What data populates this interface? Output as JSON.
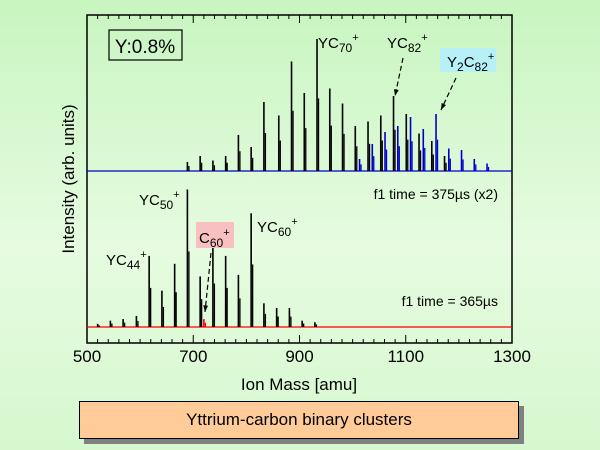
{
  "chart_data": {
    "type": "line",
    "title": "",
    "xlabel": "Ion Mass [amu]",
    "ylabel": "Intensity (arb. units)",
    "xlim": [
      500,
      1300
    ],
    "xticks": [
      500,
      700,
      900,
      1100,
      1300
    ],
    "x_minor_step": 20,
    "grid": false,
    "inset_label": "Y:0.8%",
    "caption": "Yttrium-carbon binary clusters",
    "colors": {
      "top_series": "#0000cc",
      "top_peaks": "#000000",
      "bottom_series": "#ff0000",
      "bottom_peaks": "#000000",
      "c60_highlight": "#f8c0c0",
      "y2c82_highlight": "#b8f0f8",
      "caption_bg": "#ffcc99"
    },
    "panels": [
      {
        "name": "top",
        "annotation": "f1 time = 375µs (x2)",
        "series": [
          {
            "name": "YCn+ (black)",
            "color": "#000000",
            "x": [
              689,
              713,
              737,
              761,
              785,
              809,
              833,
              861,
              885,
              909,
              933,
              957,
              981,
              1005,
              1029,
              1053,
              1077,
              1101,
              1125,
              1149,
              1173
            ],
            "y": [
              0.06,
              0.1,
              0.07,
              0.1,
              0.24,
              0.16,
              0.46,
              0.37,
              0.73,
              0.52,
              0.88,
              0.55,
              0.45,
              0.3,
              0.33,
              0.37,
              0.5,
              0.38,
              0.25,
              0.2,
              0.1
            ]
          },
          {
            "name": "Y2Cn+ (blue)",
            "color": "#0000cc",
            "x": [
              1013,
              1037,
              1061,
              1085,
              1109,
              1133,
              1157,
              1181,
              1205,
              1229,
              1253
            ],
            "y": [
              0.08,
              0.18,
              0.26,
              0.3,
              0.36,
              0.28,
              0.38,
              0.15,
              0.14,
              0.08,
              0.05
            ]
          }
        ],
        "labels": [
          {
            "text": "YC",
            "sub": "70",
            "sup": "+",
            "x": 933
          },
          {
            "text": "YC",
            "sub": "82",
            "sup": "+",
            "x": 1077
          },
          {
            "text": "Y",
            "sub1": "2",
            "text2": "C",
            "sub": "82",
            "sup": "+",
            "x": 1157
          }
        ]
      },
      {
        "name": "bottom",
        "annotation": "f1 time = 365µs",
        "series": [
          {
            "name": "YCn+ (black)",
            "color": "#000000",
            "x": [
              520,
              544,
              568,
              593,
              617,
              641,
              665,
              689,
              713,
              737,
              761,
              785,
              809,
              833,
              857,
              881,
              905,
              929
            ],
            "y": [
              0.02,
              0.04,
              0.05,
              0.07,
              0.45,
              0.23,
              0.4,
              0.87,
              0.32,
              0.5,
              0.45,
              0.33,
              0.72,
              0.15,
              0.12,
              0.12,
              0.04,
              0.03
            ]
          },
          {
            "name": "C60+ (red)",
            "color": "#ff0000",
            "x": [
              720
            ],
            "y": [
              0.05
            ]
          }
        ],
        "labels": [
          {
            "text": "YC",
            "sub": "44",
            "sup": "+",
            "x": 617
          },
          {
            "text": "YC",
            "sub": "50",
            "sup": "+",
            "x": 689
          },
          {
            "text": "C",
            "sub": "60",
            "sup": "+",
            "x": 720
          },
          {
            "text": "YC",
            "sub": "60",
            "sup": "+",
            "x": 809
          }
        ]
      }
    ]
  }
}
